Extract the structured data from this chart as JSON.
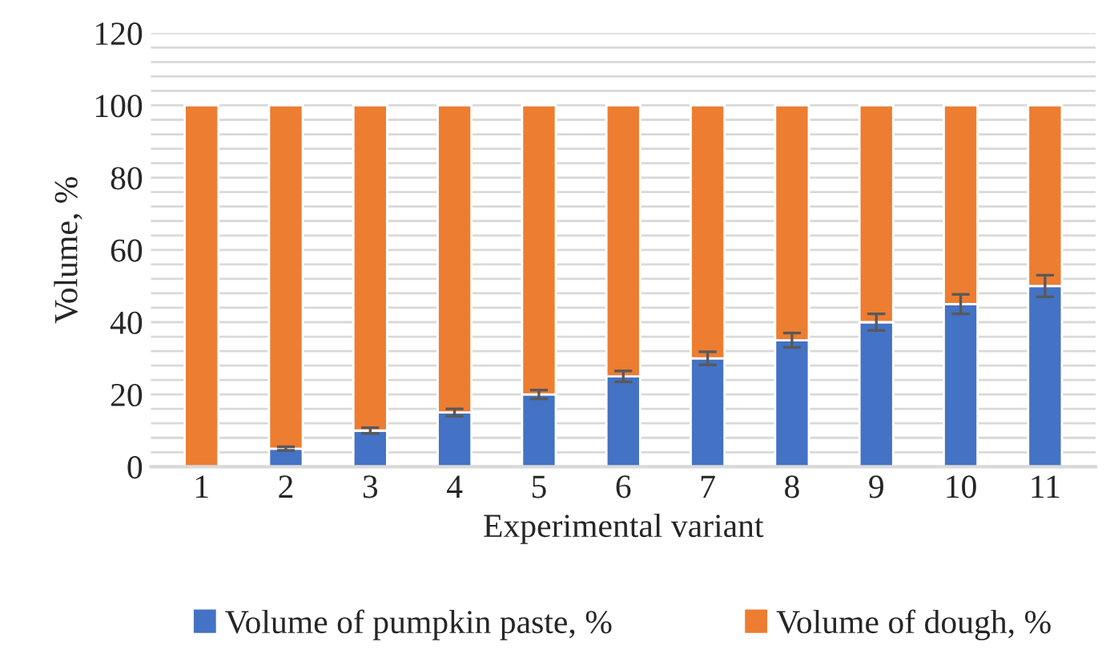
{
  "chart_data": {
    "type": "bar",
    "stacked": true,
    "xlabel": "Experimental variant",
    "ylabel": "Volume, %",
    "categories": [
      "1",
      "2",
      "3",
      "4",
      "5",
      "6",
      "7",
      "8",
      "9",
      "10",
      "11"
    ],
    "series": [
      {
        "name": "Volume of pumpkin paste, %",
        "color": "#4472c4",
        "values": [
          0,
          5,
          10,
          15,
          20,
          25,
          30,
          35,
          40,
          45,
          50
        ],
        "errors": [
          null,
          0.5,
          0.8,
          1,
          1.2,
          1.5,
          1.8,
          2,
          2.3,
          2.7,
          3
        ]
      },
      {
        "name": "Volume of dough, %",
        "color": "#ed7d31",
        "values": [
          100,
          95,
          90,
          85,
          80,
          75,
          70,
          65,
          60,
          55,
          50
        ]
      }
    ],
    "ylim": [
      0,
      120
    ],
    "yticks": [
      0,
      {
        "value": 4,
        "label": null
      },
      {
        "value": 8,
        "label": null
      },
      {
        "value": 12,
        "label": null
      },
      {
        "value": 16,
        "label": null
      },
      20,
      {
        "value": 24,
        "label": null
      },
      {
        "value": 28,
        "label": null
      },
      {
        "value": 32,
        "label": null
      },
      {
        "value": 36,
        "label": null
      },
      40,
      {
        "value": 44,
        "label": null
      },
      {
        "value": 48,
        "label": null
      },
      {
        "value": 52,
        "label": null
      },
      {
        "value": 56,
        "label": null
      },
      60,
      {
        "value": 64,
        "label": null
      },
      {
        "value": 68,
        "label": null
      },
      {
        "value": 72,
        "label": null
      },
      {
        "value": 76,
        "label": null
      },
      80,
      {
        "value": 84,
        "label": null
      },
      {
        "value": 88,
        "label": null
      },
      {
        "value": 92,
        "label": null
      },
      {
        "value": 96,
        "label": null
      },
      100,
      {
        "value": 104,
        "label": null
      },
      {
        "value": 108,
        "label": null
      },
      {
        "value": 112,
        "label": null
      },
      {
        "value": 116,
        "label": null
      },
      120
    ],
    "grid": "y",
    "legend": "bottom"
  }
}
